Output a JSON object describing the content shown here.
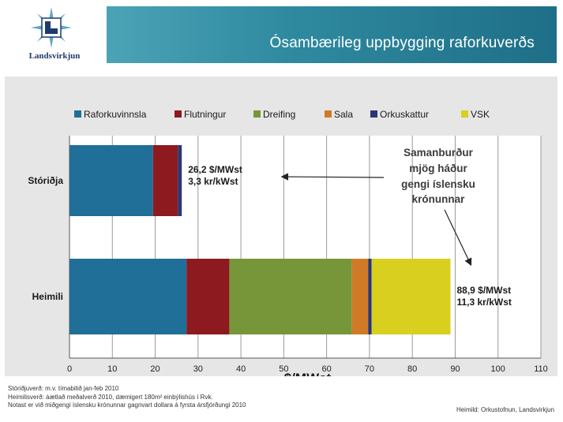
{
  "header": {
    "logo_text": "Landsvirkjun",
    "title": "Ósambærileg uppbygging raforkuverðs"
  },
  "colors": {
    "Raforkuvinnsla": "#1f6f98",
    "Flutningur": "#8c1a1f",
    "Dreifing": "#77963a",
    "Sala": "#d07a27",
    "Orkuskattur": "#2a3775",
    "VSK": "#d8cf1f",
    "banner": "#2f8aa0"
  },
  "chart_data": {
    "type": "bar",
    "orientation": "horizontal",
    "stacked": true,
    "categories": [
      "Stóriðja",
      "Heimili"
    ],
    "series": [
      {
        "name": "Raforkuvinnsla",
        "values": [
          19.5,
          27.3
        ]
      },
      {
        "name": "Flutningur",
        "values": [
          5.8,
          10.0
        ]
      },
      {
        "name": "Dreifing",
        "values": [
          0,
          28.6
        ]
      },
      {
        "name": "Sala",
        "values": [
          0,
          3.8
        ]
      },
      {
        "name": "Orkuskattur",
        "values": [
          0.9,
          0.8
        ]
      },
      {
        "name": "VSK",
        "values": [
          0,
          18.4
        ]
      }
    ],
    "bar_labels": [
      [
        "26,2 $/MWst",
        "3,3 kr/kWst"
      ],
      [
        "88,9 $/MWst",
        "11,3 kr/kWst"
      ]
    ],
    "xlabel": "$/MWst",
    "xlim": [
      0,
      110
    ],
    "xticks": [
      0,
      10,
      20,
      30,
      40,
      50,
      60,
      70,
      80,
      90,
      100,
      110
    ],
    "grid": "vertical",
    "legend_position": "top",
    "annotation": [
      "Samanburður",
      "mjög háður",
      "gengi íslensku",
      "krónunnar"
    ]
  },
  "footer": {
    "lines": [
      "Stóriðjuverð: m.v. tímabilið jan-feb 2010",
      "Heimilisverð: áætlað meðalverð 2010, dæmigert 180m² einbýlishús í Rvk.",
      "Notast er við miðgengi íslensku krónunnar gagnvart dollara á fyrsta ársfjórðungi 2010"
    ],
    "source": "Heimild: Orkustofnun, Landsvirkjun"
  }
}
